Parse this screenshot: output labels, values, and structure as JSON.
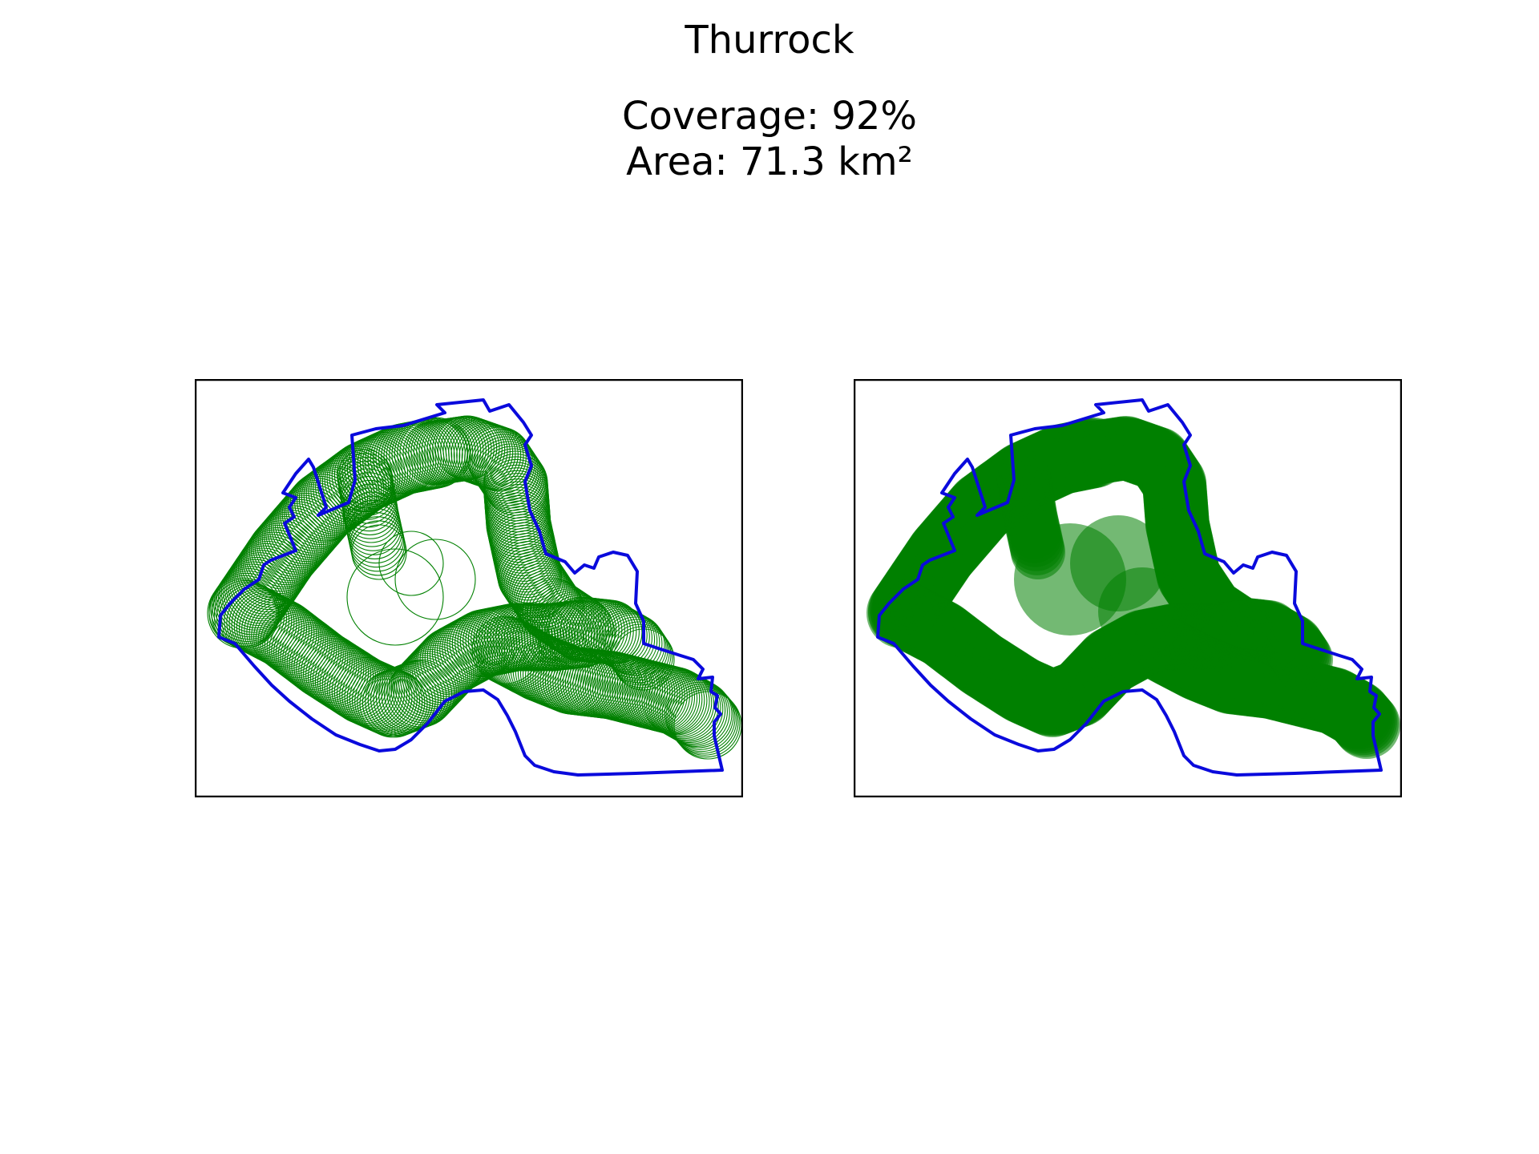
{
  "header": {
    "title": "Thurrock",
    "coverage_label": "Coverage: 92%",
    "area_label": "Area: 71.3 km²"
  },
  "colors": {
    "boundary": "#0a0adc",
    "coverage": "#008000",
    "frame": "#000000",
    "background": "#ffffff"
  },
  "panels": [
    {
      "name": "coverage-circles-outline",
      "style": "outline"
    },
    {
      "name": "coverage-filled",
      "style": "filled"
    }
  ]
}
